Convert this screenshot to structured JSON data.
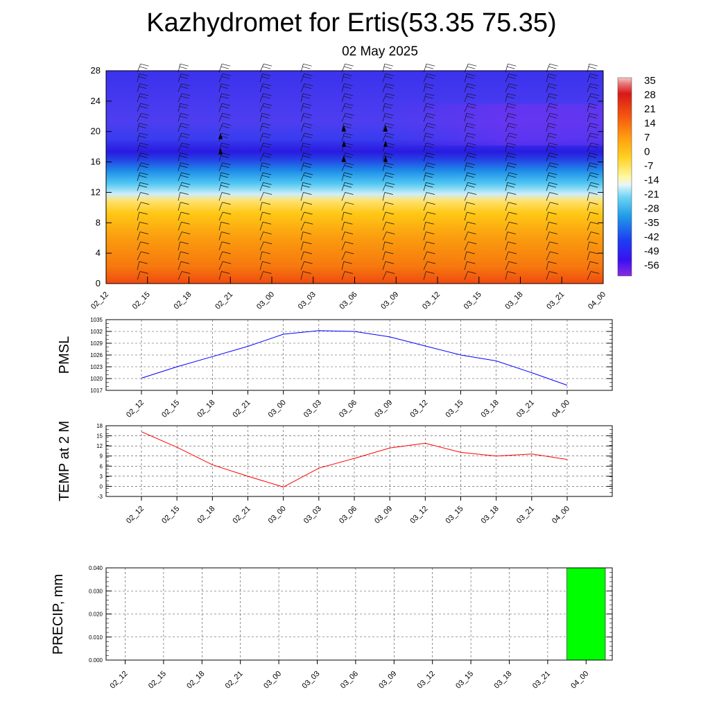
{
  "title": "Kazhydromet for Ertis(53.35 75.35)",
  "subtitle": "02 May 2025",
  "time_labels": [
    "02_12",
    "02_15",
    "02_18",
    "02_21",
    "03_00",
    "03_03",
    "03_06",
    "03_09",
    "03_12",
    "03_15",
    "03_18",
    "03_21",
    "04_00"
  ],
  "chart_data": [
    {
      "type": "heatmap",
      "name": "cross_section",
      "title": "",
      "xlabel": "",
      "ylabel": "",
      "x": [
        "02_12",
        "02_15",
        "02_18",
        "02_21",
        "03_00",
        "03_03",
        "03_06",
        "03_09",
        "03_12",
        "03_15",
        "03_18",
        "03_21",
        "04_00"
      ],
      "ylim": [
        0,
        28
      ],
      "yticks": [
        0,
        4,
        8,
        12,
        16,
        20,
        24,
        28
      ],
      "colorbar_labels": [
        "35",
        "28",
        "21",
        "14",
        "7",
        "0",
        "-7",
        "-14",
        "-21",
        "-28",
        "-35",
        "-42",
        "-49",
        "-56"
      ],
      "temperature_profile": [
        {
          "level": 0,
          "value": 20
        },
        {
          "level": 3,
          "value": 10
        },
        {
          "level": 6,
          "value": 3
        },
        {
          "level": 9,
          "value": -1
        },
        {
          "level": 11,
          "value": -8
        },
        {
          "level": 12,
          "value": -16
        },
        {
          "level": 13,
          "value": -24
        },
        {
          "level": 15,
          "value": -38
        },
        {
          "level": 17,
          "value": -50
        },
        {
          "level": 20,
          "value": -56
        },
        {
          "level": 24,
          "value": -54
        },
        {
          "level": 28,
          "value": -52
        }
      ],
      "wind_barbs": true
    },
    {
      "type": "line",
      "name": "pmsl",
      "ylabel": "PMSL",
      "x": [
        "02_12",
        "02_15",
        "02_18",
        "02_21",
        "03_00",
        "03_03",
        "03_06",
        "03_09",
        "03_12",
        "03_15",
        "03_18",
        "03_21",
        "04_00"
      ],
      "series": [
        {
          "values": [
            1020.1,
            1023.0,
            1025.6,
            1028.2,
            1031.3,
            1032.2,
            1032.0,
            1030.6,
            1028.3,
            1026.0,
            1024.5,
            1021.5,
            1018.3
          ]
        }
      ],
      "ylim": [
        1017,
        1035
      ],
      "yticks": [
        1017,
        1020,
        1023,
        1026,
        1029,
        1032,
        1035
      ],
      "color": "#0000ff",
      "grid": true
    },
    {
      "type": "line",
      "name": "temp2m",
      "ylabel": "TEMP at 2 M",
      "x": [
        "02_12",
        "02_15",
        "02_18",
        "02_21",
        "03_00",
        "03_03",
        "03_06",
        "03_09",
        "03_12",
        "03_15",
        "03_18",
        "03_21",
        "04_00"
      ],
      "series": [
        {
          "values": [
            16.2,
            11.6,
            6.4,
            3.0,
            -0.2,
            5.4,
            8.3,
            11.4,
            12.8,
            10.1,
            9.0,
            9.6,
            8.0
          ]
        }
      ],
      "ylim": [
        -3,
        18
      ],
      "yticks": [
        -3,
        0,
        3,
        6,
        9,
        12,
        15,
        18
      ],
      "color": "#ff0000",
      "grid": true
    },
    {
      "type": "bar",
      "name": "precip",
      "ylabel": "PRECIP, mm",
      "categories": [
        "02_12",
        "02_15",
        "02_18",
        "02_21",
        "03_00",
        "03_03",
        "03_06",
        "03_09",
        "03_12",
        "03_15",
        "03_18",
        "03_21",
        "04_00"
      ],
      "values": [
        0,
        0,
        0,
        0,
        0,
        0,
        0,
        0,
        0,
        0,
        0,
        0,
        0.04
      ],
      "ylim": [
        0,
        0.04
      ],
      "ytick_labels": [
        "0.000",
        "0.010",
        "0.020",
        "0.030",
        "0.040"
      ],
      "color": "#00ff00",
      "grid": true
    }
  ]
}
